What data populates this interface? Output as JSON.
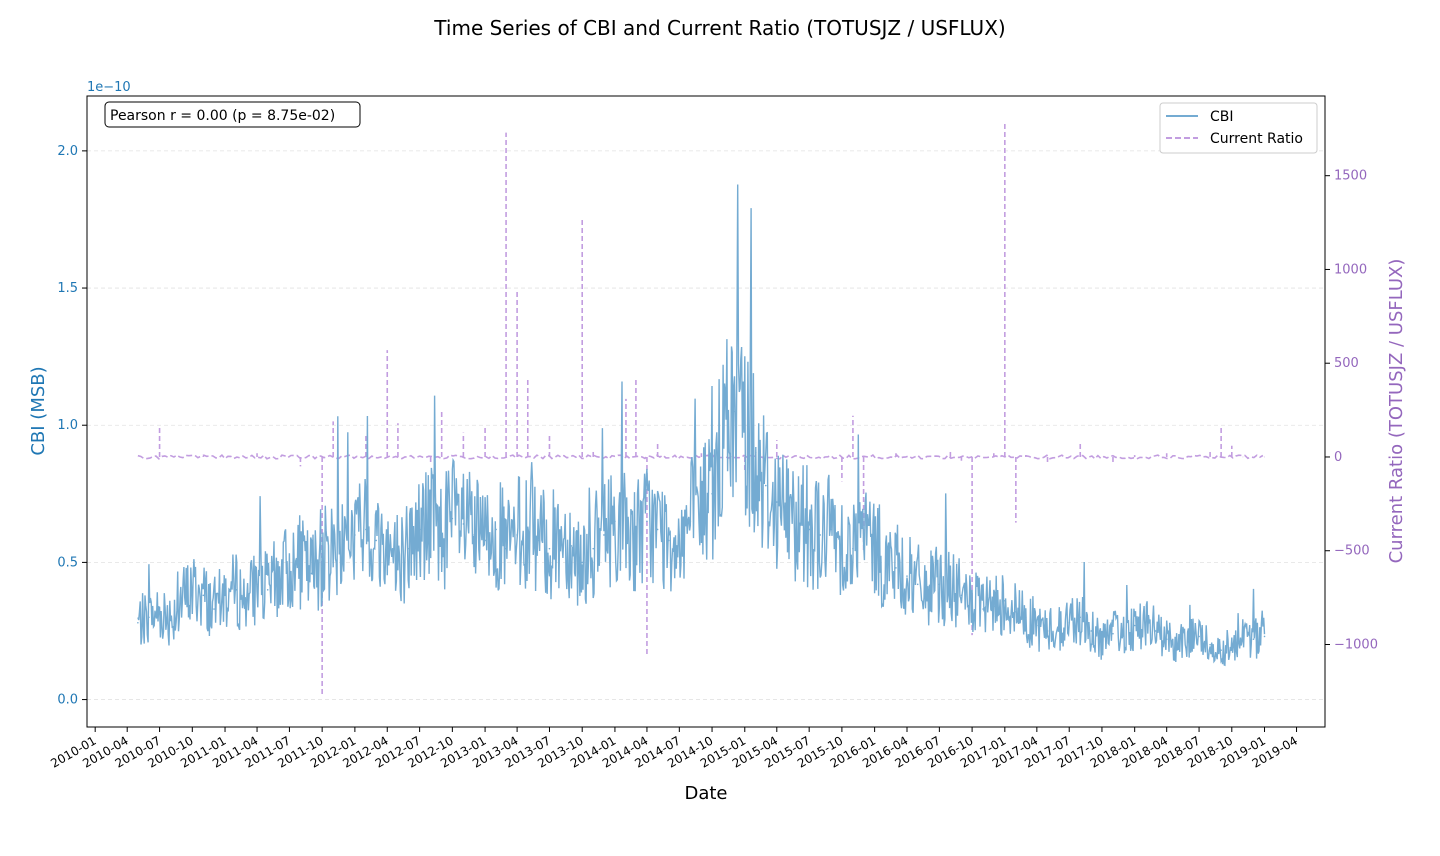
{
  "chart_data": {
    "type": "line",
    "title": "Time Series of CBI and Current Ratio (TOTUSJZ / USFLUX)",
    "xlabel": "Date",
    "ylabel_left": "CBI (MSB)",
    "ylabel_right": "Current Ratio (TOTUSJZ / USFLUX)",
    "left_axis_offset_label": "1e−10",
    "annotation": "Pearson r = 0.00 (p = 8.75e-02)",
    "legend_position": "top-right",
    "grid": "horizontal dashed",
    "x_range": [
      "2009-12-09",
      "2019-06-20"
    ],
    "ylim_left": [
      -0.1,
      2.2
    ],
    "ylim_right": [
      -1440,
      1925
    ],
    "x_ticks": [
      "2010-01",
      "2010-04",
      "2010-07",
      "2010-10",
      "2011-01",
      "2011-04",
      "2011-07",
      "2011-10",
      "2012-01",
      "2012-04",
      "2012-07",
      "2012-10",
      "2013-01",
      "2013-04",
      "2013-07",
      "2013-10",
      "2014-01",
      "2014-04",
      "2014-07",
      "2014-10",
      "2015-01",
      "2015-04",
      "2015-07",
      "2015-10",
      "2016-01",
      "2016-04",
      "2016-07",
      "2016-10",
      "2017-01",
      "2017-04",
      "2017-07",
      "2017-10",
      "2018-01",
      "2018-04",
      "2018-07",
      "2018-10",
      "2019-01",
      "2019-04"
    ],
    "y_ticks_left": [
      "0.0",
      "0.5",
      "1.0",
      "1.5",
      "2.0"
    ],
    "y_ticks_right": [
      "−1000",
      "−500",
      "0",
      "500",
      "1000",
      "1500"
    ],
    "colors": {
      "cbi": "#74abd2",
      "ratio": "#c29de0",
      "left_axis": "#1f77b4",
      "right_axis": "#9467bd"
    },
    "series": [
      {
        "name": "CBI",
        "axis": "left",
        "style": "solid",
        "x": [
          "2010-05-01",
          "2010-06-01",
          "2010-07-01",
          "2010-08-01",
          "2010-09-01",
          "2010-10-01",
          "2010-11-01",
          "2010-12-01",
          "2011-01-01",
          "2011-02-01",
          "2011-03-01",
          "2011-04-01",
          "2011-05-01",
          "2011-06-01",
          "2011-07-01",
          "2011-08-01",
          "2011-09-01",
          "2011-10-01",
          "2011-11-01",
          "2011-12-01",
          "2012-01-01",
          "2012-02-01",
          "2012-03-01",
          "2012-04-01",
          "2012-05-01",
          "2012-06-01",
          "2012-07-01",
          "2012-08-01",
          "2012-09-01",
          "2012-10-01",
          "2012-11-01",
          "2012-12-01",
          "2013-01-01",
          "2013-02-01",
          "2013-03-01",
          "2013-04-01",
          "2013-05-01",
          "2013-06-01",
          "2013-07-01",
          "2013-08-01",
          "2013-09-01",
          "2013-10-01",
          "2013-11-01",
          "2013-12-01",
          "2014-01-01",
          "2014-02-01",
          "2014-03-01",
          "2014-04-01",
          "2014-05-01",
          "2014-06-01",
          "2014-07-01",
          "2014-08-01",
          "2014-09-01",
          "2014-10-01",
          "2014-11-01",
          "2014-12-01",
          "2015-01-01",
          "2015-02-01",
          "2015-03-01",
          "2015-04-01",
          "2015-05-01",
          "2015-06-01",
          "2015-07-01",
          "2015-08-01",
          "2015-09-01",
          "2015-10-01",
          "2015-11-01",
          "2015-12-01",
          "2016-01-01",
          "2016-02-01",
          "2016-03-01",
          "2016-04-01",
          "2016-05-01",
          "2016-06-01",
          "2016-07-01",
          "2016-08-01",
          "2016-09-01",
          "2016-10-01",
          "2016-11-01",
          "2016-12-01",
          "2017-01-01",
          "2017-02-01",
          "2017-03-01",
          "2017-04-01",
          "2017-05-01",
          "2017-06-01",
          "2017-07-01",
          "2017-08-01",
          "2017-09-01",
          "2017-10-01",
          "2017-11-01",
          "2017-12-01",
          "2018-01-01",
          "2018-02-01",
          "2018-03-01",
          "2018-04-01",
          "2018-05-01",
          "2018-06-01",
          "2018-07-01",
          "2018-08-01",
          "2018-09-01",
          "2018-10-01",
          "2018-11-01",
          "2018-12-01",
          "2019-01-01"
        ],
        "values": [
          0.28,
          0.3,
          0.32,
          0.3,
          0.36,
          0.4,
          0.38,
          0.33,
          0.38,
          0.4,
          0.36,
          0.42,
          0.4,
          0.45,
          0.48,
          0.5,
          0.46,
          0.52,
          0.55,
          0.58,
          0.6,
          0.62,
          0.58,
          0.55,
          0.52,
          0.55,
          0.62,
          0.65,
          0.6,
          0.66,
          0.64,
          0.6,
          0.58,
          0.62,
          0.55,
          0.6,
          0.62,
          0.58,
          0.55,
          0.6,
          0.56,
          0.5,
          0.55,
          0.6,
          0.65,
          0.62,
          0.6,
          0.65,
          0.62,
          0.58,
          0.6,
          0.65,
          0.7,
          0.75,
          0.95,
          1.05,
          1.0,
          0.9,
          0.78,
          0.72,
          0.68,
          0.65,
          0.62,
          0.6,
          0.62,
          0.58,
          0.55,
          0.6,
          0.55,
          0.5,
          0.48,
          0.45,
          0.42,
          0.4,
          0.42,
          0.4,
          0.38,
          0.35,
          0.33,
          0.34,
          0.36,
          0.32,
          0.3,
          0.27,
          0.25,
          0.26,
          0.28,
          0.3,
          0.25,
          0.22,
          0.24,
          0.25,
          0.27,
          0.28,
          0.25,
          0.22,
          0.2,
          0.21,
          0.23,
          0.2,
          0.18,
          0.2,
          0.24,
          0.22,
          0.23
        ]
      },
      {
        "name": "Current Ratio",
        "axis": "right",
        "style": "dashed",
        "x": [
          "2010-05-01",
          "2010-06-01",
          "2010-07-01",
          "2010-11-01",
          "2011-04-01",
          "2011-08-01",
          "2011-10-01",
          "2011-11-01",
          "2012-02-01",
          "2012-04-01",
          "2012-05-01",
          "2012-08-01",
          "2012-09-01",
          "2012-11-01",
          "2013-01-01",
          "2013-03-01",
          "2013-04-01",
          "2013-05-01",
          "2013-07-01",
          "2013-10-01",
          "2013-11-01",
          "2014-02-01",
          "2014-03-01",
          "2014-04-01",
          "2014-05-01",
          "2014-09-01",
          "2015-01-01",
          "2015-04-01",
          "2015-10-01",
          "2015-11-01",
          "2015-12-01",
          "2016-03-01",
          "2016-08-01",
          "2016-09-01",
          "2016-10-01",
          "2016-12-01",
          "2017-01-01",
          "2017-02-01",
          "2017-03-01",
          "2017-05-01",
          "2017-08-01",
          "2017-11-01",
          "2018-01-01",
          "2018-04-01",
          "2018-08-01",
          "2018-09-01",
          "2018-10-01",
          "2018-11-01",
          "2019-01-01"
        ],
        "values": [
          0,
          0,
          160,
          5,
          20,
          -50,
          -1280,
          190,
          120,
          570,
          180,
          -30,
          250,
          130,
          160,
          1730,
          880,
          420,
          120,
          1270,
          40,
          310,
          420,
          -1060,
          80,
          20,
          -80,
          90,
          -130,
          220,
          -500,
          20,
          40,
          -20,
          -950,
          20,
          1790,
          -350,
          10,
          -30,
          80,
          -40,
          10,
          20,
          30,
          170,
          60,
          0,
          0
        ]
      }
    ]
  }
}
